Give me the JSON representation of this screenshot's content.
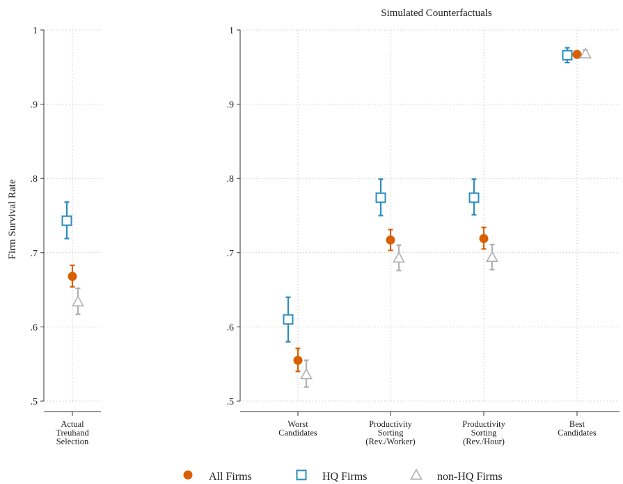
{
  "chart_data": [
    {
      "type": "scatter",
      "title": "",
      "ylabel": "Firm Survival Rate",
      "xlabel": "",
      "ylim": [
        0.5,
        1.0
      ],
      "yticks": [
        ".5",
        ".6",
        ".7",
        ".8",
        ".9",
        "1"
      ],
      "grid": true,
      "categories": [
        [
          "Actual",
          "Treuhand",
          "Selection"
        ]
      ],
      "series": [
        {
          "name": "All Firms",
          "marker": "circle",
          "color": "#d95f02",
          "values": [
            0.668
          ],
          "ci_low": [
            0.654
          ],
          "ci_high": [
            0.683
          ]
        },
        {
          "name": "HQ Firms",
          "marker": "square",
          "color": "#2b8cbe",
          "values": [
            0.743
          ],
          "ci_low": [
            0.719
          ],
          "ci_high": [
            0.768
          ]
        },
        {
          "name": "non-HQ Firms",
          "marker": "triangle",
          "color": "#b0b0b0",
          "values": [
            0.634
          ],
          "ci_low": [
            0.617
          ],
          "ci_high": [
            0.652
          ]
        }
      ]
    },
    {
      "type": "scatter",
      "title": "Simulated Counterfactuals",
      "ylabel": "",
      "xlabel": "",
      "ylim": [
        0.5,
        1.0
      ],
      "yticks": [
        ".5",
        ".6",
        ".7",
        ".8",
        ".9",
        "1"
      ],
      "grid": true,
      "categories": [
        [
          "Worst",
          "Candidates"
        ],
        [
          "Productivity",
          "Sorting",
          "(Rev./Worker)"
        ],
        [
          "Productivity",
          "Sorting",
          "(Rev./Hour)"
        ],
        [
          "Best",
          "Candidates"
        ]
      ],
      "series": [
        {
          "name": "All Firms",
          "marker": "circle",
          "color": "#d95f02",
          "values": [
            0.555,
            0.717,
            0.719,
            0.967
          ],
          "ci_low": [
            0.54,
            0.703,
            0.705,
            0.963
          ],
          "ci_high": [
            0.571,
            0.731,
            0.734,
            0.971
          ]
        },
        {
          "name": "HQ Firms",
          "marker": "square",
          "color": "#2b8cbe",
          "values": [
            0.61,
            0.774,
            0.774,
            0.966
          ],
          "ci_low": [
            0.58,
            0.75,
            0.751,
            0.956
          ],
          "ci_high": [
            0.64,
            0.799,
            0.799,
            0.976
          ]
        },
        {
          "name": "non-HQ Firms",
          "marker": "triangle",
          "color": "#b0b0b0",
          "values": [
            0.536,
            0.693,
            0.694,
            0.968
          ],
          "ci_low": [
            0.519,
            0.676,
            0.677,
            0.963
          ],
          "ci_high": [
            0.555,
            0.71,
            0.711,
            0.973
          ]
        }
      ]
    }
  ],
  "legend": {
    "position": "bottom",
    "items": [
      {
        "label": "All Firms",
        "icon": "filled-circle-icon"
      },
      {
        "label": "HQ Firms",
        "icon": "hollow-square-icon"
      },
      {
        "label": "non-HQ Firms",
        "icon": "hollow-triangle-icon"
      }
    ]
  }
}
